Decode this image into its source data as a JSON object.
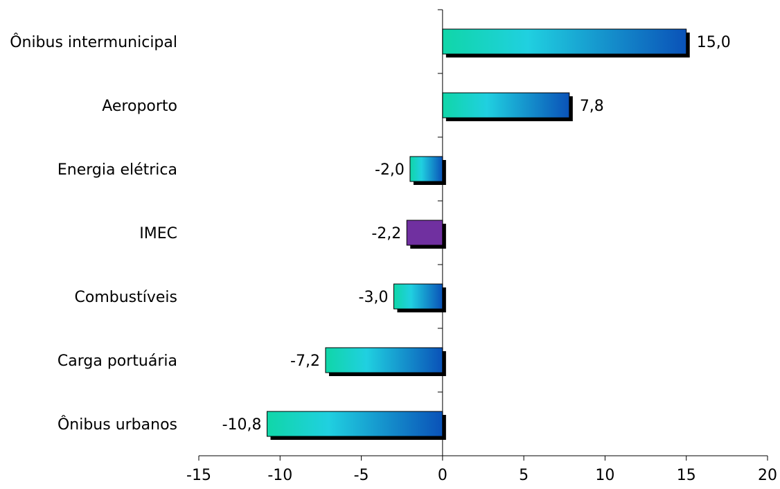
{
  "chart_data": {
    "type": "bar",
    "orientation": "horizontal",
    "title": "",
    "xlabel": "",
    "ylabel": "",
    "categories": [
      "Ônibus intermunicipal",
      "Aeroporto",
      "Energia elétrica",
      "IMEC",
      "Combustíveis",
      "Carga portuária",
      "Ônibus urbanos"
    ],
    "values": [
      15.0,
      7.8,
      -2.0,
      -2.2,
      -3.0,
      -7.2,
      -10.8
    ],
    "value_labels": [
      "15,0",
      "7,8",
      "-2,0",
      "-2,2",
      "-3,0",
      "-7,2",
      "-10,8"
    ],
    "xlim": [
      -15,
      20
    ],
    "xticks": [
      -15,
      -10,
      -5,
      0,
      5,
      10,
      15,
      20
    ],
    "xtick_labels": [
      "-15",
      "-10",
      "-5",
      "0",
      "5",
      "10",
      "15",
      "20"
    ],
    "grid": false,
    "legend": "none",
    "colors": {
      "gradient_start": "#10d6a8",
      "gradient_mid": "#20d0e0",
      "gradient_end": "#0a52b8",
      "highlight": "#7030a0",
      "highlight_category": "IMEC",
      "shadow": "#000000"
    }
  }
}
